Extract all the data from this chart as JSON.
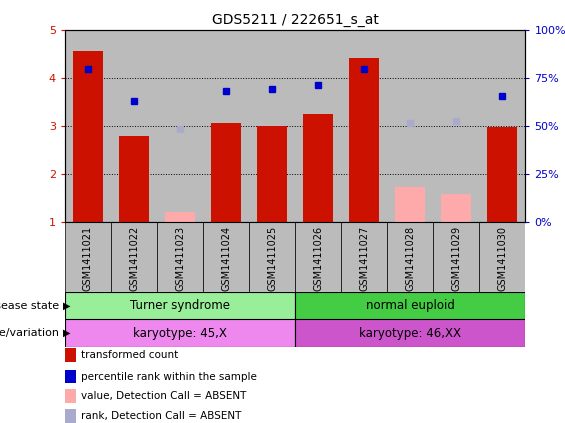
{
  "title": "GDS5211 / 222651_s_at",
  "samples": [
    "GSM1411021",
    "GSM1411022",
    "GSM1411023",
    "GSM1411024",
    "GSM1411025",
    "GSM1411026",
    "GSM1411027",
    "GSM1411028",
    "GSM1411029",
    "GSM1411030"
  ],
  "red_bars": [
    4.55,
    2.78,
    null,
    3.05,
    3.0,
    3.25,
    4.4,
    null,
    null,
    2.98
  ],
  "pink_bars": [
    null,
    null,
    1.2,
    null,
    null,
    null,
    null,
    1.72,
    1.58,
    null
  ],
  "blue_dots": [
    4.18,
    3.52,
    null,
    3.72,
    3.77,
    3.85,
    4.18,
    null,
    null,
    3.62
  ],
  "lavender_dots": [
    null,
    null,
    2.93,
    null,
    null,
    null,
    null,
    3.05,
    3.1,
    null
  ],
  "ylim": [
    1.0,
    5.0
  ],
  "yticks_left": [
    1,
    2,
    3,
    4,
    5
  ],
  "bar_width": 0.65,
  "red_color": "#cc1100",
  "pink_color": "#ffaaaa",
  "blue_color": "#0000cc",
  "lavender_color": "#aaaacc",
  "disease_state_groups": [
    {
      "label": "Turner syndrome",
      "start": 0,
      "end": 4,
      "color": "#99ee99"
    },
    {
      "label": "normal euploid",
      "start": 5,
      "end": 9,
      "color": "#44cc44"
    }
  ],
  "genotype_groups": [
    {
      "label": "karyotype: 45,X",
      "start": 0,
      "end": 4,
      "color": "#ee88ee"
    },
    {
      "label": "karyotype: 46,XX",
      "start": 5,
      "end": 9,
      "color": "#cc55cc"
    }
  ],
  "sample_bg_color": "#bbbbbb",
  "legend_items": [
    {
      "label": "transformed count",
      "color": "#cc1100"
    },
    {
      "label": "percentile rank within the sample",
      "color": "#0000cc"
    },
    {
      "label": "value, Detection Call = ABSENT",
      "color": "#ffaaaa"
    },
    {
      "label": "rank, Detection Call = ABSENT",
      "color": "#aaaacc"
    }
  ]
}
